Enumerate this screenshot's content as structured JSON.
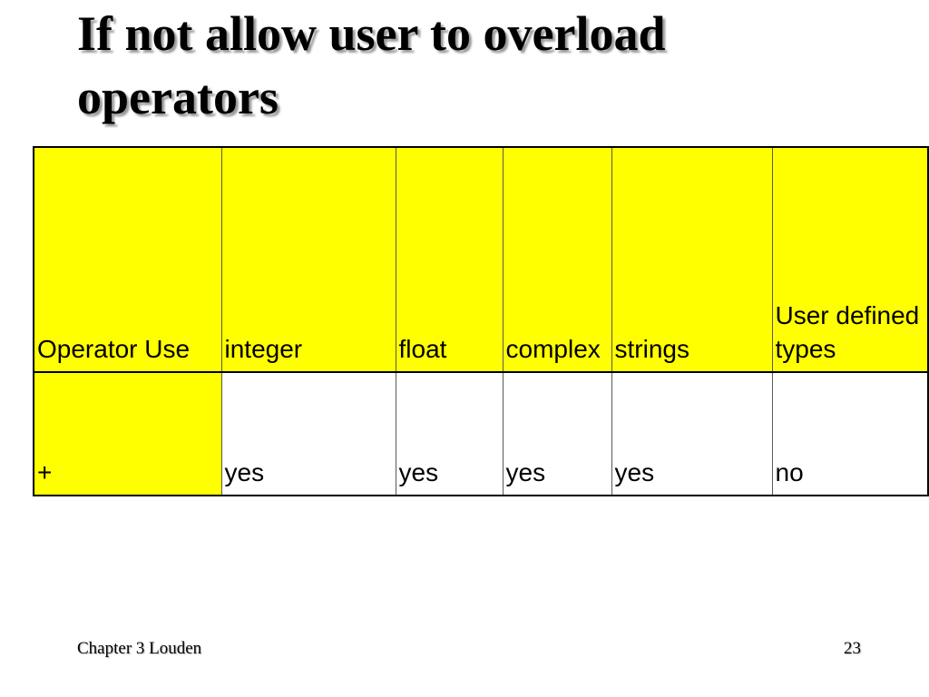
{
  "slide": {
    "title": "If not allow user to overload operators",
    "footer": {
      "left": "Chapter 3 Louden",
      "page_number": "23"
    }
  },
  "table": {
    "columns": [
      "Operator Use",
      "integer",
      "float",
      "complex",
      "strings",
      "User defined types"
    ],
    "rows": [
      {
        "operator": "+",
        "values": [
          "yes",
          "yes",
          "yes",
          "yes",
          "no"
        ]
      }
    ]
  },
  "colors": {
    "header_fill": "#FFFF00",
    "data_fill": "#FFFFFF",
    "text": "#000000",
    "border_inner": "#595959",
    "border_outer": "#000000",
    "title_shadow": "#9a9a9a"
  }
}
